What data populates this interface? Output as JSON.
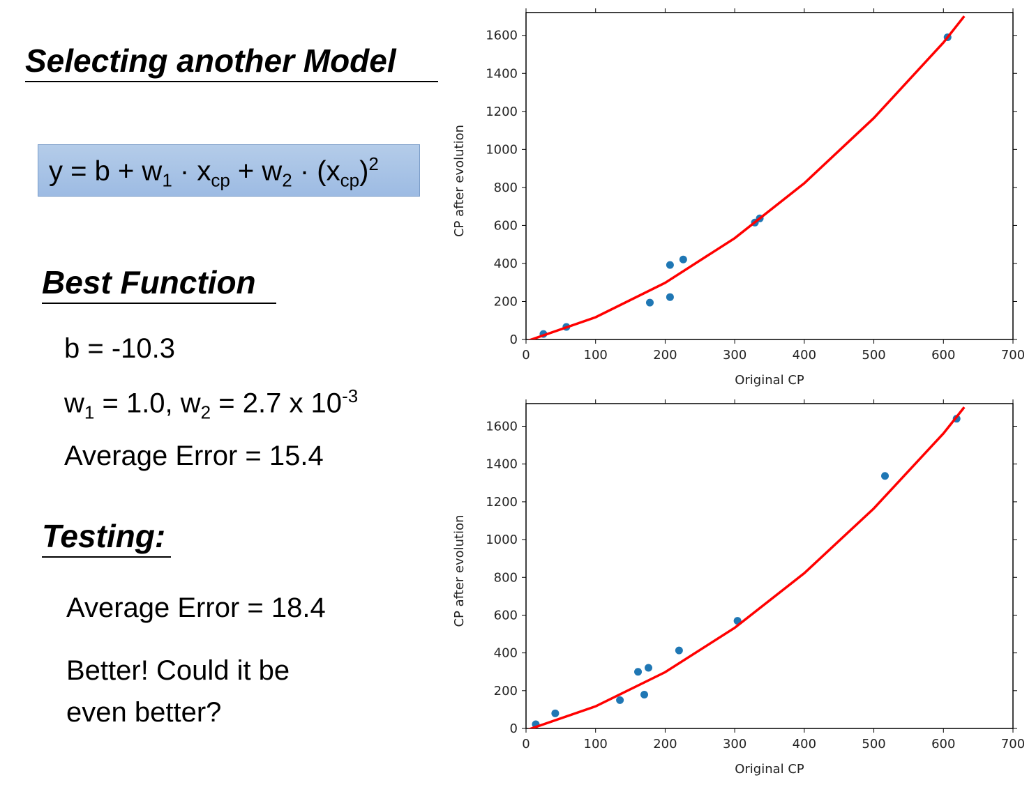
{
  "slide": {
    "title": "Selecting another Model",
    "equation": [
      "y = b + w",
      "1",
      " · x",
      "cp",
      " + w",
      "2",
      " · (x",
      "cp",
      ")",
      "2"
    ],
    "best_function": {
      "heading": "Best Function",
      "b_line": "b = -10.3",
      "w_line": [
        "w",
        "1",
        " = 1.0, w",
        "2",
        " = 2.7 x 10",
        "-3"
      ],
      "error_line": "Average Error = 15.4"
    },
    "testing": {
      "heading": "Testing:",
      "error_line": "Average Error = 18.4",
      "comment": [
        "Better! Could it be",
        "even better?"
      ]
    }
  },
  "chart_data": [
    {
      "type": "scatter",
      "xlabel": "Original CP",
      "ylabel": "CP after evolution",
      "xlim": [
        0,
        700
      ],
      "ylim": [
        0,
        1720
      ],
      "xticks": [
        0,
        100,
        200,
        300,
        400,
        500,
        600,
        700
      ],
      "yticks": [
        0,
        200,
        400,
        600,
        800,
        1000,
        1200,
        1400,
        1600
      ],
      "series": [
        {
          "style": "markers",
          "color": "#1f77b4",
          "x": [
            25,
            58,
            178,
            207,
            207,
            226,
            329,
            336,
            606
          ],
          "values": [
            29,
            66,
            194,
            223,
            392,
            421,
            615,
            637,
            1590
          ]
        },
        {
          "style": "line",
          "color": "#ff0000",
          "x": [
            0,
            100,
            200,
            300,
            400,
            500,
            600,
            630
          ],
          "values": [
            -10,
            117,
            298,
            533,
            822,
            1165,
            1562,
            1701
          ]
        }
      ]
    },
    {
      "type": "scatter",
      "xlabel": "Original CP",
      "ylabel": "CP after evolution",
      "xlim": [
        0,
        700
      ],
      "ylim": [
        0,
        1720
      ],
      "xticks": [
        0,
        100,
        200,
        300,
        400,
        500,
        600,
        700
      ],
      "yticks": [
        0,
        200,
        400,
        600,
        800,
        1000,
        1200,
        1400,
        1600
      ],
      "series": [
        {
          "style": "markers",
          "color": "#1f77b4",
          "x": [
            14,
            42,
            135,
            161,
            170,
            176,
            220,
            304,
            516,
            619
          ],
          "values": [
            22,
            80,
            150,
            300,
            179,
            321,
            413,
            570,
            1337,
            1640
          ]
        },
        {
          "style": "line",
          "color": "#ff0000",
          "x": [
            0,
            100,
            200,
            300,
            400,
            500,
            600,
            630
          ],
          "values": [
            -10,
            117,
            298,
            533,
            822,
            1165,
            1562,
            1701
          ]
        }
      ]
    }
  ]
}
